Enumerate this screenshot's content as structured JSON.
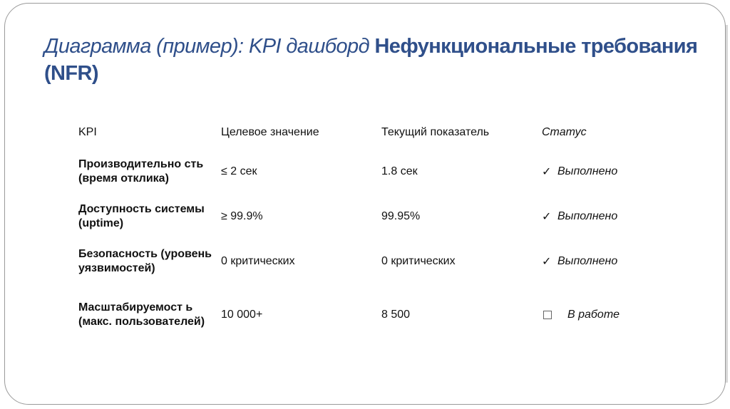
{
  "title": {
    "italic_part": "Диаграмма (пример): KPI дашборд ",
    "bold_part": "Нефункциональные требования (NFR)"
  },
  "table": {
    "headers": [
      "KPI",
      "Целевое значение",
      "Текущий показатель",
      "Статус"
    ],
    "rows": [
      {
        "kpi": "Производительно сть (время отклика)",
        "target": "≤ 2 сек",
        "current": "1.8 сек",
        "status": "Выполнено",
        "status_icon": "check-icon"
      },
      {
        "kpi": "Доступность системы (uptime)",
        "target": "≥ 99.9%",
        "current": "99.95%",
        "status": "Выполнено",
        "status_icon": "check-icon"
      },
      {
        "kpi": "Безопасность (уровень уязвимостей)",
        "target": "0 критических",
        "current": "0 критических",
        "status": "Выполнено",
        "status_icon": "check-icon"
      },
      {
        "kpi": "Масштабируемост ь (макс. пользователей)",
        "target": "10 000+",
        "current": "8 500",
        "status": "В работе",
        "status_icon": "empty-box-icon"
      }
    ]
  },
  "colors": {
    "title": "#2f4f8a"
  }
}
